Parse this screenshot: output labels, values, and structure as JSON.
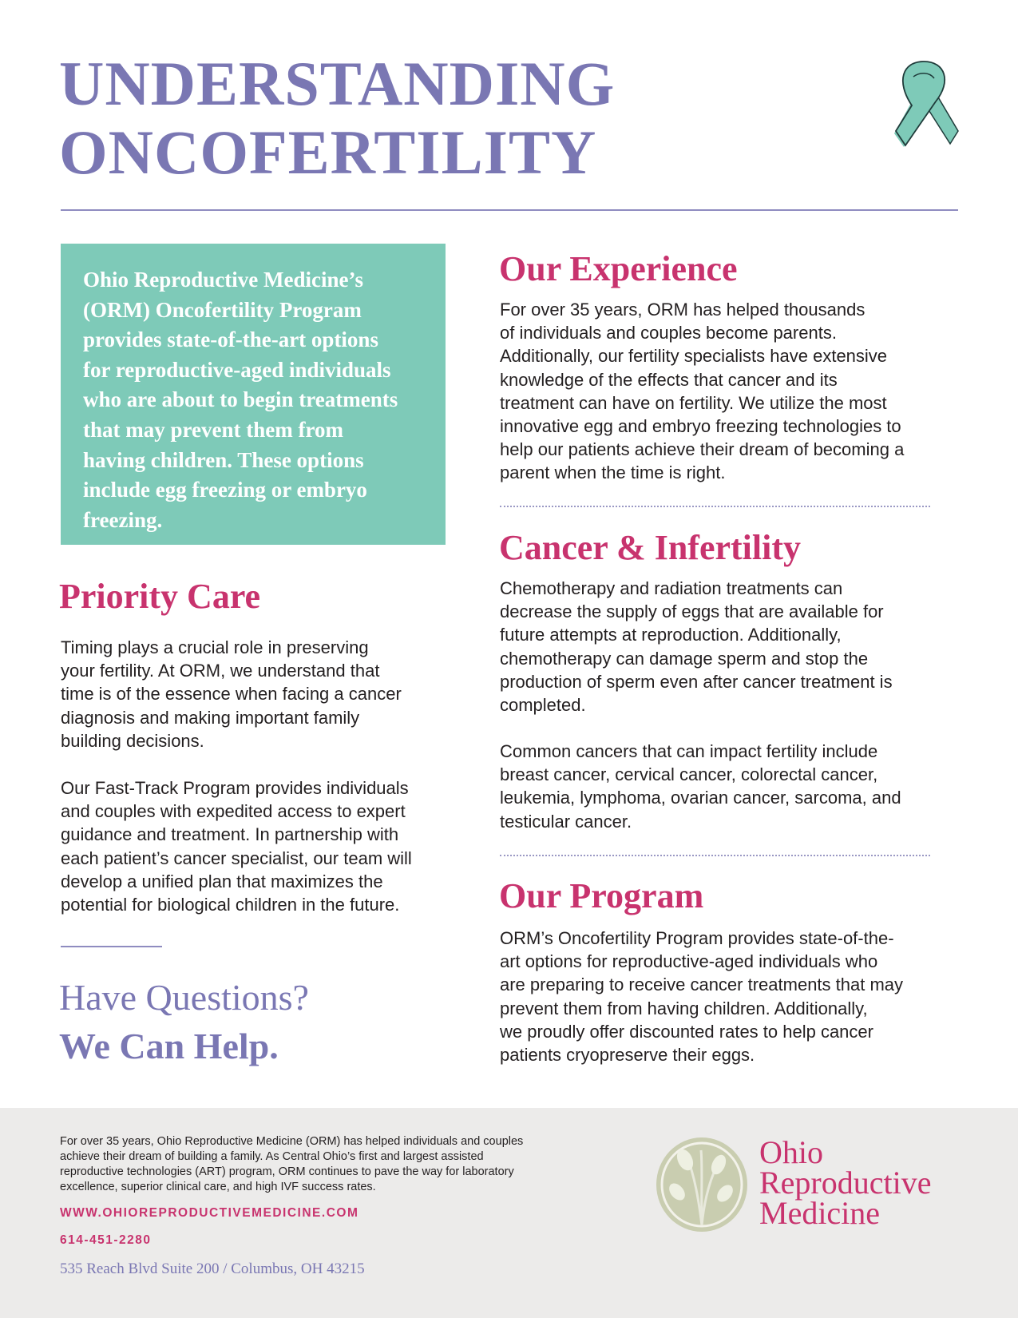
{
  "header": {
    "title_lines": [
      "UNDERSTANDING",
      "ONCOFERTILITY"
    ],
    "ribbon_icon": "teal-awareness-ribbon-icon"
  },
  "colors": {
    "title": "#7a77b3",
    "heading": "#c8336e",
    "teal": "#7ecab8",
    "footer_bg": "#ecebea"
  },
  "intro": {
    "lines": [
      "Ohio Reproductive Medicine’s",
      "(ORM) Oncofertility Program",
      "provides state-of-the-art options",
      "for reproductive-aged individuals",
      "who are about to begin treatments",
      "that may prevent them from",
      "having children. These options",
      "include egg freezing or embryo",
      "freezing."
    ]
  },
  "priority": {
    "heading": "Priority Care",
    "p1": [
      "Timing plays a crucial role in preserving",
      "your fertility. At ORM, we understand that",
      "time is of the essence when facing a cancer",
      "diagnosis and making important family",
      "building decisions."
    ],
    "p2": [
      "Our Fast-Track Program  provides individuals",
      "and couples with expedited access to expert",
      "guidance and treatment. In partnership with",
      "each patient’s cancer specialist, our team will",
      "develop a unified plan that maximizes the",
      "potential for biological children in the future."
    ]
  },
  "questions": {
    "line1": "Have Questions?",
    "line2": "We Can Help."
  },
  "experience": {
    "heading": "Our Experience",
    "p1": [
      "For over 35 years, ORM has helped thousands",
      "of individuals and couples become parents.",
      "Additionally, our fertility specialists have extensive",
      "knowledge of the effects that cancer and its",
      "treatment can have on fertility. We utilize the most",
      "innovative egg and embryo freezing technologies to",
      "help our patients achieve their dream of becoming a",
      "parent when the time is right."
    ]
  },
  "cancer": {
    "heading": "Cancer & Infertility",
    "p1": [
      "Chemotherapy and radiation treatments can",
      "decrease the supply of eggs that are available for",
      "future attempts at reproduction. Additionally,",
      "chemotherapy can damage sperm and stop the",
      "production of sperm even after cancer treatment is",
      "completed."
    ],
    "p2": [
      "Common cancers that can impact fertility include",
      "breast cancer, cervical cancer, colorectal cancer,",
      "leukemia, lymphoma, ovarian cancer, sarcoma, and",
      "testicular cancer."
    ]
  },
  "program": {
    "heading": "Our Program",
    "p1": [
      "ORM’s Oncofertility Program provides state-of-the-",
      "art options for reproductive-aged individuals who",
      "are preparing to receive cancer treatments that may",
      "prevent them from having children. Additionally,",
      "we proudly offer discounted rates to help cancer",
      "patients cryopreserve their eggs."
    ]
  },
  "footer": {
    "about": [
      "For over 35 years, Ohio Reproductive Medicine (ORM) has helped individuals and couples",
      "achieve their dream of building a family. As Central Ohio’s first and largest assisted",
      "reproductive technologies (ART) program, ORM continues to pave the way for laboratory",
      "excellence, superior clinical care, and high IVF success rates."
    ],
    "url": "WWW.OHIOREPRODUCTIVEMEDICINE.COM",
    "phone": "614-451-2280",
    "address": "535 Reach Blvd Suite 200 / Columbus, OH 43215",
    "logo_lines": [
      "Ohio",
      "Reproductive",
      "Medicine"
    ]
  }
}
